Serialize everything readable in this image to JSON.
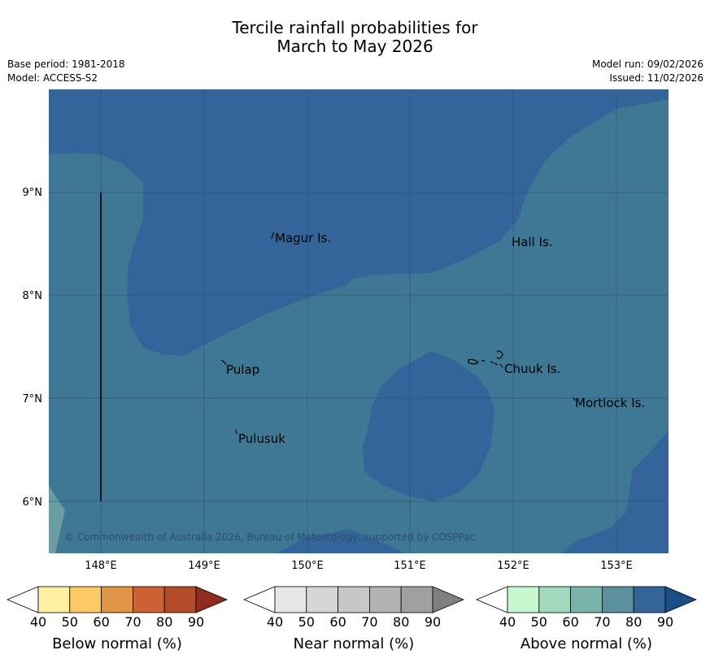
{
  "header": {
    "title_line1": "Tercile rainfall probabilities for",
    "title_line2": "March to May 2026",
    "base_period": "Base period: 1981-2018",
    "model": "Model: ACCESS-S2",
    "model_run": "Model run: 09/02/2026",
    "issued": "Issued: 11/02/2026"
  },
  "map": {
    "lat_labels": [
      "9°N",
      "8°N",
      "7°N",
      "6°N"
    ],
    "lon_labels": [
      "148°E",
      "149°E",
      "150°E",
      "151°E",
      "152°E",
      "153°E"
    ],
    "places": [
      "Magur Is.",
      "Hall Is.",
      "Pulap",
      "Chuuk Is.",
      "Mortlock Is.",
      "Pulusuk"
    ],
    "copyright": "© Commonwealth of Australia 2026, Bureau of Meteorology, supported by COSPPac",
    "colors": {
      "above_70_80": "#3f7895",
      "above_80_90": "#33659a",
      "above_60_70": "#6b9ca1"
    }
  },
  "legends": [
    {
      "label": "Below normal (%)",
      "ticks": [
        "40",
        "50",
        "60",
        "70",
        "80",
        "90"
      ],
      "colors": [
        "#ffffff",
        "#ffeda0",
        "#fdc967",
        "#e09446",
        "#cc6233",
        "#b34b28",
        "#8f2c1e"
      ]
    },
    {
      "label": "Near normal (%)",
      "ticks": [
        "40",
        "50",
        "60",
        "70",
        "80",
        "90"
      ],
      "colors": [
        "#ffffff",
        "#e6e6e6",
        "#d6d6d6",
        "#c6c6c6",
        "#b3b3b3",
        "#a0a0a0",
        "#808080"
      ]
    },
    {
      "label": "Above normal (%)",
      "ticks": [
        "40",
        "50",
        "60",
        "70",
        "80",
        "90"
      ],
      "colors": [
        "#ffffff",
        "#c7f7cc",
        "#a2d8bd",
        "#79b3ac",
        "#5a8f9d",
        "#33659a",
        "#1b4d86"
      ]
    }
  ]
}
